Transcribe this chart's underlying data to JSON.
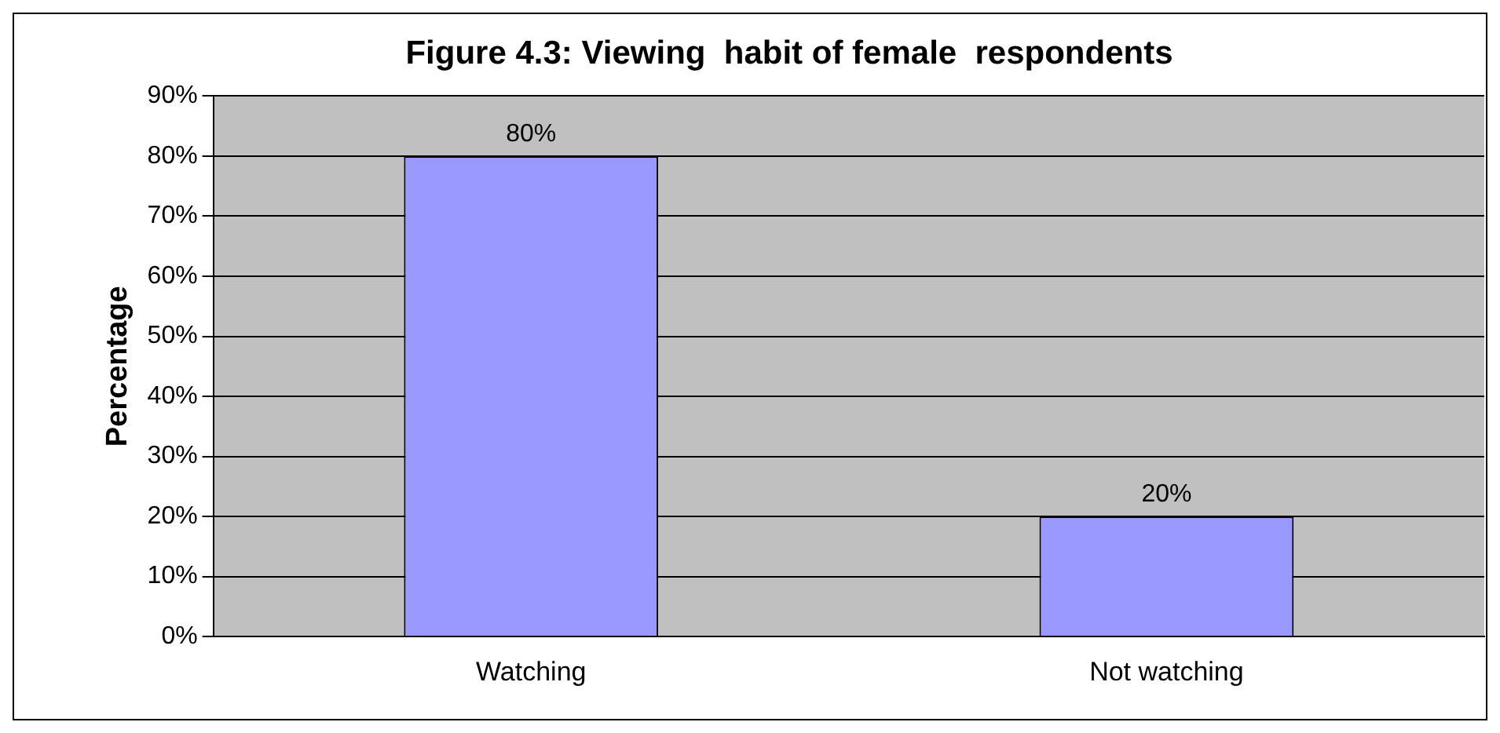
{
  "chart_data": {
    "type": "bar",
    "title": "Figure 4.3: Viewing  habit of female  respondents",
    "ylabel": "Percentage",
    "categories": [
      "Watching",
      "Not watching"
    ],
    "values": [
      80,
      20
    ],
    "color": "#9999ff",
    "value_labels": [
      "80%",
      "20%"
    ],
    "ylim": [
      0,
      90
    ],
    "yticks": [
      {
        "value": 0,
        "label": "0%"
      },
      {
        "value": 10,
        "label": "10%"
      },
      {
        "value": 20,
        "label": "20%"
      },
      {
        "value": 30,
        "label": "30%"
      },
      {
        "value": 40,
        "label": "40%"
      },
      {
        "value": 50,
        "label": "50%"
      },
      {
        "value": 60,
        "label": "60%"
      },
      {
        "value": 70,
        "label": "70%"
      },
      {
        "value": 80,
        "label": "80%"
      },
      {
        "value": 90,
        "label": "90%"
      }
    ],
    "grid": "y",
    "legend": false
  }
}
